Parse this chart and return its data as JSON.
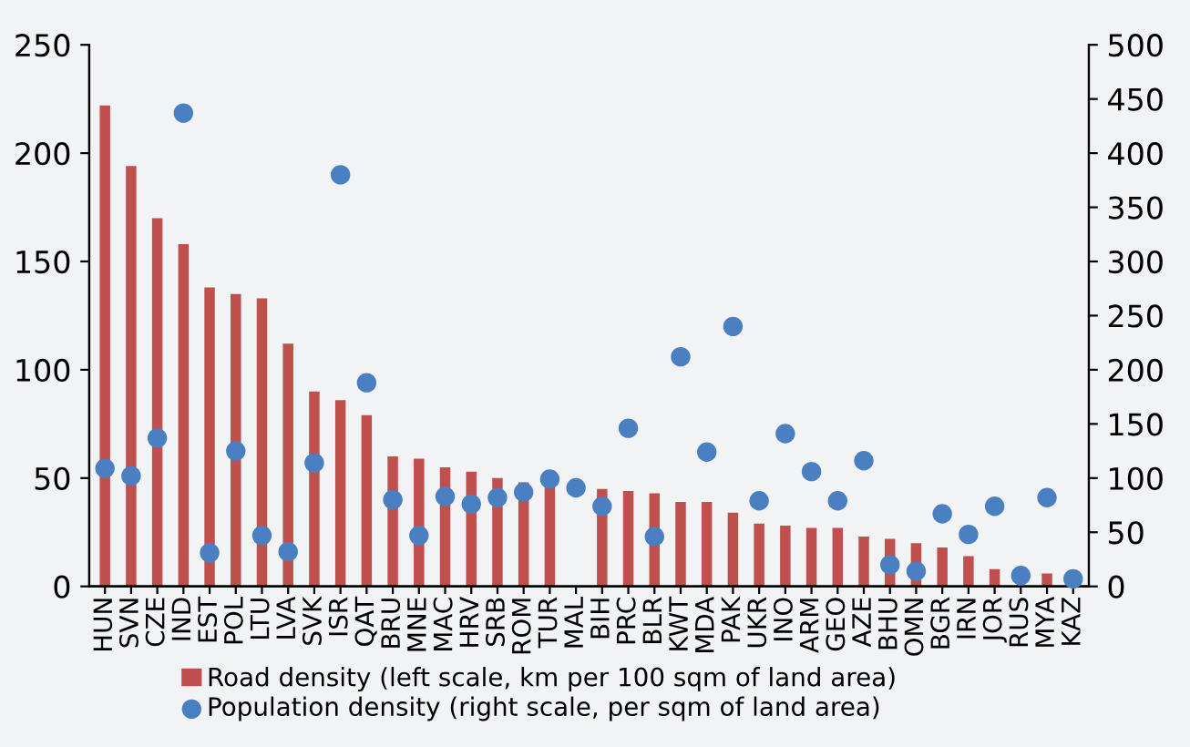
{
  "chart_data": {
    "type": "bar",
    "categories": [
      "HUN",
      "SVN",
      "CZE",
      "IND",
      "EST",
      "POL",
      "LTU",
      "LVA",
      "SVK",
      "ISR",
      "QAT",
      "BRU",
      "MNE",
      "MAC",
      "HRV",
      "SRB",
      "ROM",
      "TUR",
      "MAL",
      "BIH",
      "PRC",
      "BLR",
      "KWT",
      "MDA",
      "PAK",
      "UKR",
      "INO",
      "ARM",
      "GEO",
      "AZE",
      "BHU",
      "OMN",
      "BGR",
      "IRN",
      "JOR",
      "RUS",
      "MYA",
      "KAZ"
    ],
    "series": [
      {
        "name": "Road density (left scale, km per 100 sqm of land area)",
        "color": "#c0504d",
        "values": [
          222,
          194,
          170,
          158,
          138,
          135,
          133,
          112,
          90,
          86,
          79,
          60,
          59,
          55,
          53,
          50,
          48,
          47,
          null,
          45,
          44,
          43,
          39,
          39,
          34,
          29,
          28,
          27,
          27,
          23,
          22,
          20,
          18,
          14,
          8,
          null,
          6,
          null
        ]
      },
      {
        "name": "Population density (right scale, per sqm of land area)",
        "type": "scatter",
        "axis": "y2",
        "color": "#4a7fc1",
        "marker": "circle",
        "values": [
          109,
          102,
          137,
          437,
          31,
          125,
          47,
          32,
          114,
          380,
          188,
          80,
          47,
          83,
          76,
          82,
          87,
          99,
          91,
          74,
          146,
          46,
          212,
          124,
          240,
          79,
          141,
          106,
          79,
          116,
          20,
          14,
          67,
          48,
          74,
          10,
          82,
          7
        ]
      }
    ],
    "ylim": [
      0,
      250
    ],
    "yticks": [
      0,
      50,
      100,
      150,
      200,
      250
    ],
    "y2lim": [
      0,
      500
    ],
    "y2ticks": [
      0,
      50,
      100,
      150,
      200,
      250,
      300,
      350,
      400,
      450,
      500
    ],
    "grid": false,
    "legend": "bottom"
  }
}
